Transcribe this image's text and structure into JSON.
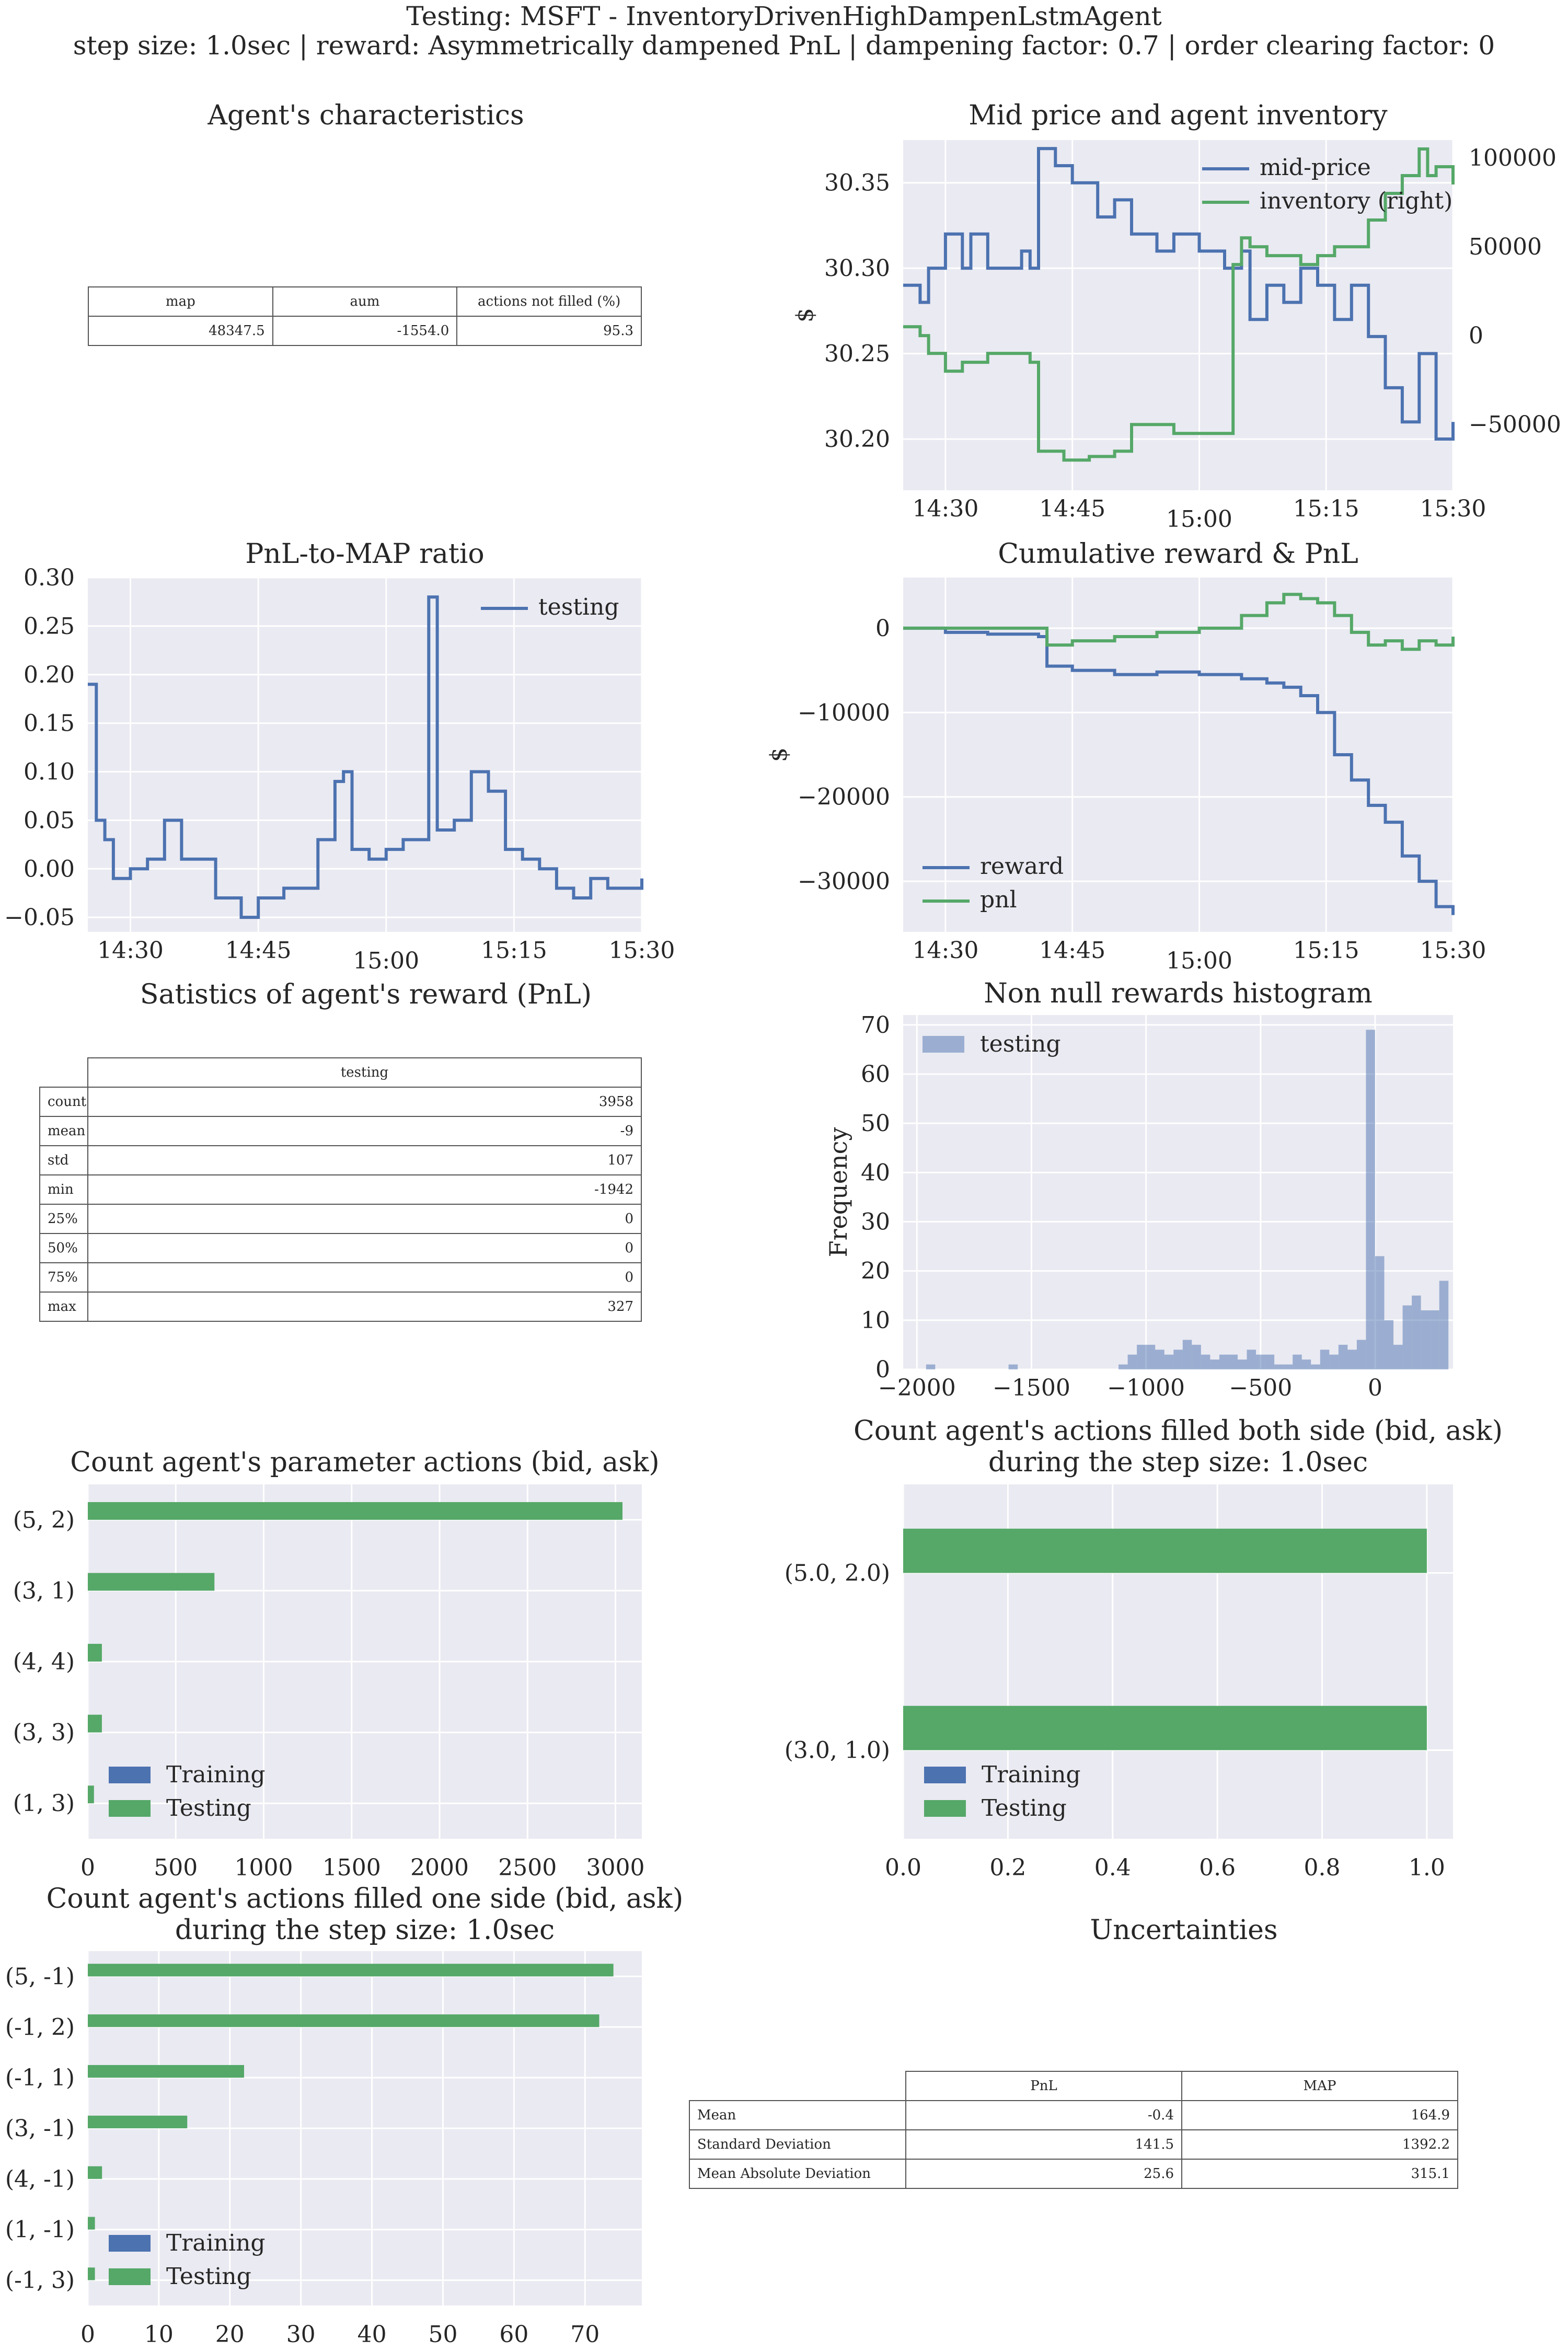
{
  "figure": {
    "title_line1": "Testing: MSFT - InventoryDrivenHighDampenLstmAgent",
    "title_line2": "step size: 1.0sec | reward: Asymmetrically dampened PnL | dampening factor: 0.7  | order clearing factor: 0"
  },
  "colors": {
    "blue": "#4C72B0",
    "green": "#55A868",
    "panel_bg": "#EAEAF2",
    "grid": "#FFFFFF",
    "text": "#262626"
  },
  "agent_characteristics": {
    "title": "Agent's characteristics",
    "headers": [
      "map",
      "aum",
      "actions not filled (%)"
    ],
    "values": [
      "48347.5",
      "-1554.0",
      "95.3"
    ]
  },
  "reward_stats": {
    "title": "Satistics of agent's reward (PnL)",
    "column": "testing",
    "rows": [
      {
        "label": "count",
        "value": "3958"
      },
      {
        "label": "mean",
        "value": "-9"
      },
      {
        "label": "std",
        "value": "107"
      },
      {
        "label": "min",
        "value": "-1942"
      },
      {
        "label": "25%",
        "value": "0"
      },
      {
        "label": "50%",
        "value": "0"
      },
      {
        "label": "75%",
        "value": "0"
      },
      {
        "label": "max",
        "value": "327"
      }
    ]
  },
  "uncertainties": {
    "title": "Uncertainties",
    "headers": [
      "PnL",
      "MAP"
    ],
    "rows": [
      {
        "label": "Mean",
        "pnl": "-0.4",
        "map": "164.9"
      },
      {
        "label": "Standard Deviation",
        "pnl": "141.5",
        "map": "1392.2"
      },
      {
        "label": "Mean Absolute Deviation",
        "pnl": "25.6",
        "map": "315.1"
      }
    ]
  },
  "chart_data": [
    {
      "id": "midprice",
      "type": "line",
      "title": "Mid price and agent inventory",
      "ylabel": "$",
      "x_unit": "time (HH:MM)",
      "x_ticks": [
        "14:30",
        "14:45",
        "15:00",
        "15:15",
        "15:30"
      ],
      "xlim": [
        "14:25",
        "15:30"
      ],
      "ylim": [
        30.17,
        30.375
      ],
      "y_ticks": [
        "30.20",
        "30.25",
        "30.30",
        "30.35"
      ],
      "y2lim": [
        -87000,
        110000
      ],
      "y2_ticks": [
        "−50000",
        "0",
        "50000",
        "100000"
      ],
      "legend": [
        "mid-price",
        "inventory (right)"
      ],
      "legend_position": "upper right",
      "series": [
        {
          "name": "mid-price",
          "axis": "left",
          "x": [
            "14:25",
            "14:27",
            "14:28",
            "14:30",
            "14:32",
            "14:33",
            "14:35",
            "14:37",
            "14:39",
            "14:40",
            "14:41",
            "14:43",
            "14:45",
            "14:48",
            "14:50",
            "14:52",
            "14:55",
            "14:57",
            "15:00",
            "15:03",
            "15:05",
            "15:06",
            "15:08",
            "15:10",
            "15:12",
            "15:14",
            "15:16",
            "15:18",
            "15:20",
            "15:22",
            "15:24",
            "15:26",
            "15:28",
            "15:30"
          ],
          "y": [
            30.29,
            30.28,
            30.3,
            30.32,
            30.3,
            30.32,
            30.3,
            30.3,
            30.31,
            30.3,
            30.37,
            30.36,
            30.35,
            30.33,
            30.34,
            30.32,
            30.31,
            30.32,
            30.31,
            30.3,
            30.31,
            30.27,
            30.29,
            30.28,
            30.3,
            30.29,
            30.27,
            30.29,
            30.26,
            30.23,
            30.21,
            30.25,
            30.2,
            30.21
          ]
        },
        {
          "name": "inventory (right)",
          "axis": "right",
          "x": [
            "14:25",
            "14:27",
            "14:28",
            "14:30",
            "14:32",
            "14:35",
            "14:37",
            "14:40",
            "14:41",
            "14:44",
            "14:47",
            "14:50",
            "14:52",
            "14:55",
            "14:57",
            "15:00",
            "15:03",
            "15:04",
            "15:05",
            "15:06",
            "15:08",
            "15:10",
            "15:12",
            "15:14",
            "15:16",
            "15:18",
            "15:20",
            "15:22",
            "15:24",
            "15:26",
            "15:27",
            "15:28",
            "15:30"
          ],
          "y": [
            5000,
            0,
            -10000,
            -20000,
            -15000,
            -10000,
            -10000,
            -15000,
            -65000,
            -70000,
            -68000,
            -65000,
            -50000,
            -50000,
            -55000,
            -55000,
            -55000,
            40000,
            55000,
            50000,
            45000,
            45000,
            40000,
            45000,
            50000,
            50000,
            65000,
            80000,
            90000,
            105000,
            90000,
            95000,
            85000
          ]
        }
      ]
    },
    {
      "id": "pnlmap",
      "type": "line",
      "title": "PnL-to-MAP ratio",
      "x_ticks": [
        "14:30",
        "14:45",
        "15:00",
        "15:15",
        "15:30"
      ],
      "xlim": [
        "14:25",
        "15:30"
      ],
      "ylim": [
        -0.065,
        0.3
      ],
      "y_ticks": [
        "−0.05",
        "0.00",
        "0.05",
        "0.10",
        "0.15",
        "0.20",
        "0.25",
        "0.30"
      ],
      "legend": [
        "testing"
      ],
      "legend_position": "upper right",
      "series": [
        {
          "name": "testing",
          "x": [
            "14:25",
            "14:26",
            "14:27",
            "14:28",
            "14:30",
            "14:32",
            "14:34",
            "14:35",
            "14:36",
            "14:38",
            "14:40",
            "14:42",
            "14:43",
            "14:45",
            "14:48",
            "14:50",
            "14:52",
            "14:54",
            "14:55",
            "14:56",
            "14:58",
            "15:00",
            "15:02",
            "15:04",
            "15:05",
            "15:06",
            "15:08",
            "15:10",
            "15:12",
            "15:14",
            "15:16",
            "15:18",
            "15:20",
            "15:22",
            "15:24",
            "15:26",
            "15:28",
            "15:30"
          ],
          "y": [
            0.19,
            0.05,
            0.03,
            -0.01,
            0.0,
            0.01,
            0.05,
            0.05,
            0.01,
            0.01,
            -0.03,
            -0.03,
            -0.05,
            -0.03,
            -0.02,
            -0.02,
            0.03,
            0.09,
            0.1,
            0.02,
            0.01,
            0.02,
            0.03,
            0.03,
            0.28,
            0.04,
            0.05,
            0.1,
            0.08,
            0.02,
            0.01,
            0.0,
            -0.02,
            -0.03,
            -0.01,
            -0.02,
            -0.02,
            -0.01
          ]
        }
      ]
    },
    {
      "id": "cumreward",
      "type": "line",
      "title": "Cumulative reward & PnL",
      "ylabel": "$",
      "x_ticks": [
        "14:30",
        "14:45",
        "15:00",
        "15:15",
        "15:30"
      ],
      "xlim": [
        "14:25",
        "15:30"
      ],
      "ylim": [
        -36000,
        6000
      ],
      "y_ticks": [
        "−30000",
        "−20000",
        "−10000",
        "0"
      ],
      "legend": [
        "reward",
        "pnl"
      ],
      "legend_position": "lower left",
      "series": [
        {
          "name": "reward",
          "x": [
            "14:25",
            "14:30",
            "14:35",
            "14:41",
            "14:42",
            "14:45",
            "14:50",
            "14:55",
            "15:00",
            "15:05",
            "15:08",
            "15:10",
            "15:12",
            "15:14",
            "15:16",
            "15:18",
            "15:20",
            "15:22",
            "15:24",
            "15:26",
            "15:28",
            "15:30"
          ],
          "y": [
            0,
            -500,
            -700,
            -1000,
            -4500,
            -5000,
            -5500,
            -5200,
            -5500,
            -6000,
            -6500,
            -7000,
            -8000,
            -10000,
            -15000,
            -18000,
            -21000,
            -23000,
            -27000,
            -30000,
            -33000,
            -34000
          ]
        },
        {
          "name": "pnl",
          "x": [
            "14:25",
            "14:30",
            "14:35",
            "14:41",
            "14:42",
            "14:45",
            "14:50",
            "14:55",
            "15:00",
            "15:05",
            "15:08",
            "15:10",
            "15:12",
            "15:14",
            "15:16",
            "15:18",
            "15:20",
            "15:22",
            "15:24",
            "15:26",
            "15:28",
            "15:30"
          ],
          "y": [
            0,
            0,
            0,
            0,
            -2000,
            -1500,
            -1000,
            -500,
            0,
            1500,
            3000,
            4000,
            3500,
            3000,
            1500,
            -500,
            -2000,
            -1500,
            -2500,
            -1500,
            -2000,
            -1000
          ]
        }
      ]
    },
    {
      "id": "histogram",
      "type": "bar",
      "title": "Non null rewards histogram",
      "ylabel": "Frequency",
      "xlim": [
        -2060,
        340
      ],
      "ylim": [
        0,
        72
      ],
      "x_ticks": [
        "−2000",
        "−1500",
        "−1000",
        "−500",
        "0"
      ],
      "y_ticks": [
        "0",
        "10",
        "20",
        "30",
        "40",
        "50",
        "60",
        "70"
      ],
      "legend": [
        "testing"
      ],
      "legend_position": "upper left",
      "bin_width": 40,
      "bins_start": [
        -1960,
        -1600,
        -1120,
        -1080,
        -1040,
        -1000,
        -960,
        -920,
        -880,
        -840,
        -800,
        -760,
        -720,
        -680,
        -640,
        -600,
        -560,
        -520,
        -480,
        -440,
        -400,
        -360,
        -320,
        -280,
        -240,
        -200,
        -160,
        -120,
        -80,
        -40,
        0,
        40,
        80,
        120,
        160,
        200,
        240,
        280
      ],
      "counts": [
        1,
        1,
        1,
        3,
        5,
        5,
        4,
        3,
        4,
        6,
        5,
        3,
        2,
        3,
        3,
        2,
        4,
        3,
        3,
        1,
        1,
        3,
        2,
        1,
        4,
        3,
        5,
        4,
        6,
        69,
        23,
        10,
        5,
        13,
        15,
        12,
        12,
        18
      ]
    },
    {
      "id": "param_actions",
      "type": "bar",
      "orientation": "horizontal",
      "title": "Count agent's parameter actions (bid, ask)",
      "categories": [
        "(5, 2)",
        "(3, 1)",
        "(4, 4)",
        "(3, 3)",
        "(1, 3)"
      ],
      "xlim": [
        0,
        3150
      ],
      "x_ticks": [
        "0",
        "500",
        "1000",
        "1500",
        "2000",
        "2500",
        "3000"
      ],
      "legend": [
        "Training",
        "Testing"
      ],
      "legend_position": "lower left",
      "series": [
        {
          "name": "Training",
          "values": [
            0,
            0,
            0,
            0,
            0
          ]
        },
        {
          "name": "Testing",
          "values": [
            3040,
            720,
            80,
            80,
            35
          ]
        }
      ]
    },
    {
      "id": "filled_both",
      "type": "bar",
      "orientation": "horizontal",
      "title": "Count agent's actions filled both side (bid, ask)",
      "subtitle": "during the step size: 1.0sec",
      "categories": [
        "(5.0, 2.0)",
        "(3.0, 1.0)"
      ],
      "xlim": [
        0,
        1.05
      ],
      "x_ticks": [
        "0.0",
        "0.2",
        "0.4",
        "0.6",
        "0.8",
        "1.0"
      ],
      "legend": [
        "Training",
        "Testing"
      ],
      "legend_position": "lower left",
      "series": [
        {
          "name": "Training",
          "values": [
            0,
            0
          ]
        },
        {
          "name": "Testing",
          "values": [
            1,
            1
          ]
        }
      ]
    },
    {
      "id": "filled_one",
      "type": "bar",
      "orientation": "horizontal",
      "title": "Count agent's actions filled one side (bid, ask)",
      "subtitle": "during the step size: 1.0sec",
      "categories": [
        "(5, -1)",
        "(-1, 2)",
        "(-1, 1)",
        "(3, -1)",
        "(4, -1)",
        "(1, -1)",
        "(-1, 3)"
      ],
      "xlim": [
        0,
        78
      ],
      "x_ticks": [
        "0",
        "10",
        "20",
        "30",
        "40",
        "50",
        "60",
        "70"
      ],
      "legend": [
        "Training",
        "Testing"
      ],
      "legend_position": "lower left",
      "series": [
        {
          "name": "Training",
          "values": [
            0,
            0,
            0,
            0,
            0,
            0,
            0
          ]
        },
        {
          "name": "Testing",
          "values": [
            74,
            72,
            22,
            14,
            2,
            1,
            1
          ]
        }
      ]
    }
  ]
}
